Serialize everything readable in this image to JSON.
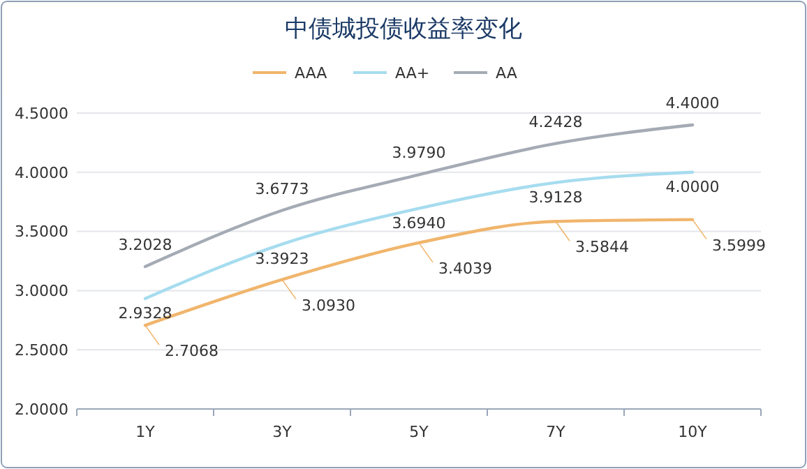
{
  "chart_data": {
    "type": "line",
    "title": "中债城投债收益率变化",
    "categories": [
      "1Y",
      "3Y",
      "5Y",
      "7Y",
      "10Y"
    ],
    "series": [
      {
        "name": "AAA",
        "color": "#f0b56c",
        "values": [
          2.7068,
          3.093,
          3.4039,
          3.5844,
          3.5999
        ],
        "value_labels": [
          "2.7068",
          "3.0930",
          "3.4039",
          "3.5844",
          "3.5999"
        ]
      },
      {
        "name": "AA+",
        "color": "#a6dcef",
        "values": [
          2.9328,
          3.3923,
          3.694,
          3.9128,
          4.0
        ],
        "value_labels": [
          "2.9328",
          "3.3923",
          "3.6940",
          "3.9128",
          "4.0000"
        ]
      },
      {
        "name": "AA",
        "color": "#a5abb5",
        "values": [
          3.2028,
          3.6773,
          3.979,
          4.2428,
          4.4
        ],
        "value_labels": [
          "3.2028",
          "3.6773",
          "3.9790",
          "4.2428",
          "4.4000"
        ]
      }
    ],
    "ylim": [
      2,
      4.5
    ],
    "yticks": [
      {
        "value": 2,
        "label": "2.0000"
      },
      {
        "value": 2.5,
        "label": "2.5000"
      },
      {
        "value": 3,
        "label": "3.0000"
      },
      {
        "value": 3.5,
        "label": "3.5000"
      },
      {
        "value": 4,
        "label": "4.0000"
      },
      {
        "value": 4.5,
        "label": "4.5000"
      }
    ],
    "grid": "y",
    "legend": "top"
  }
}
